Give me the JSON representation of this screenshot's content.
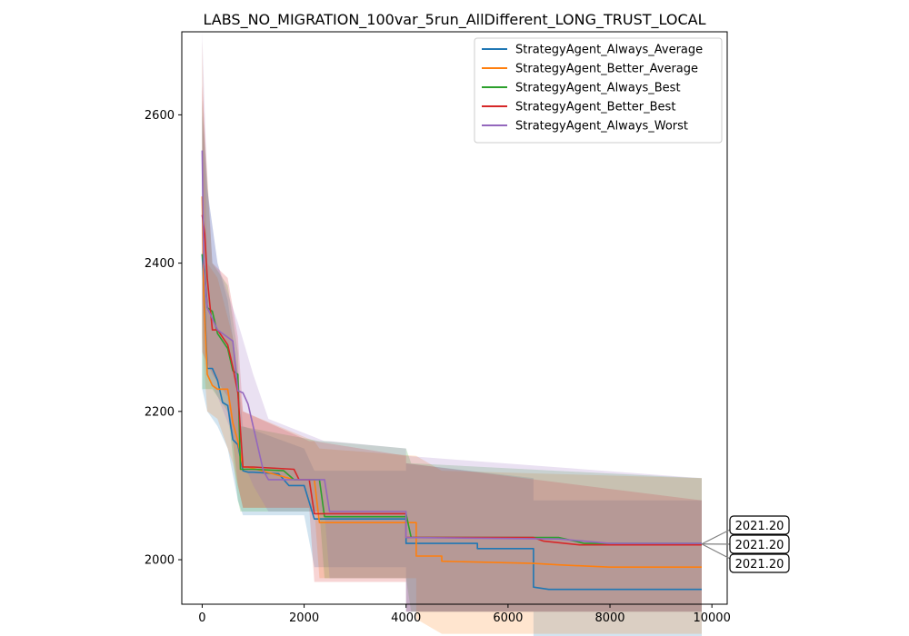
{
  "chart_data": {
    "type": "line",
    "title": "LABS_NO_MIGRATION_100var_5run_AllDifferent_LONG_TRUST_LOCAL",
    "xlabel": "",
    "ylabel": "",
    "xlim": [
      -400,
      10300
    ],
    "ylim": [
      1940,
      2712
    ],
    "xticks": [
      0,
      2000,
      4000,
      6000,
      8000,
      10000
    ],
    "yticks": [
      2000,
      2200,
      2400,
      2600
    ],
    "legend_position": "upper-right",
    "grid": false,
    "series": [
      {
        "name": "StrategyAgent_Always_Average",
        "color": "#1f77b4",
        "points": [
          [
            0,
            2412
          ],
          [
            50,
            2340
          ],
          [
            100,
            2258
          ],
          [
            200,
            2258
          ],
          [
            300,
            2242
          ],
          [
            400,
            2212
          ],
          [
            500,
            2208
          ],
          [
            600,
            2162
          ],
          [
            700,
            2155
          ],
          [
            800,
            2120
          ],
          [
            900,
            2118
          ],
          [
            1000,
            2118
          ],
          [
            1500,
            2116
          ],
          [
            1700,
            2100
          ],
          [
            2000,
            2100
          ],
          [
            2200,
            2055
          ],
          [
            4000,
            2055
          ],
          [
            4000,
            2022
          ],
          [
            5400,
            2022
          ],
          [
            5400,
            2015
          ],
          [
            6500,
            2015
          ],
          [
            6500,
            1963
          ],
          [
            6800,
            1960
          ],
          [
            9800,
            1960
          ]
        ],
        "band": [
          [
            0,
            2230,
            2600
          ],
          [
            100,
            2200,
            2500
          ],
          [
            300,
            2180,
            2400
          ],
          [
            500,
            2150,
            2350
          ],
          [
            700,
            2080,
            2250
          ],
          [
            800,
            2060,
            2180
          ],
          [
            2000,
            2060,
            2150
          ],
          [
            2200,
            1990,
            2120
          ],
          [
            4000,
            1990,
            2120
          ],
          [
            4000,
            1930,
            2130
          ],
          [
            6500,
            1930,
            2110
          ],
          [
            6500,
            1885,
            2080
          ],
          [
            9800,
            1885,
            2080
          ]
        ]
      },
      {
        "name": "StrategyAgent_Better_Average",
        "color": "#ff7f0e",
        "points": [
          [
            0,
            2490
          ],
          [
            30,
            2360
          ],
          [
            100,
            2250
          ],
          [
            200,
            2235
          ],
          [
            300,
            2230
          ],
          [
            500,
            2230
          ],
          [
            600,
            2185
          ],
          [
            700,
            2160
          ],
          [
            800,
            2125
          ],
          [
            900,
            2125
          ],
          [
            1800,
            2108
          ],
          [
            2200,
            2108
          ],
          [
            2300,
            2050
          ],
          [
            4200,
            2050
          ],
          [
            4200,
            2005
          ],
          [
            4700,
            2005
          ],
          [
            4700,
            1998
          ],
          [
            6500,
            1995
          ],
          [
            7000,
            1993
          ],
          [
            8000,
            1990
          ],
          [
            9800,
            1990
          ]
        ],
        "band": [
          [
            0,
            2300,
            2700
          ],
          [
            100,
            2200,
            2400
          ],
          [
            300,
            2190,
            2380
          ],
          [
            600,
            2130,
            2300
          ],
          [
            800,
            2070,
            2200
          ],
          [
            2200,
            2070,
            2160
          ],
          [
            2300,
            1975,
            2150
          ],
          [
            4200,
            1975,
            2140
          ],
          [
            4200,
            1920,
            2140
          ],
          [
            4700,
            1900,
            2120
          ],
          [
            9800,
            1900,
            2110
          ]
        ]
      },
      {
        "name": "StrategyAgent_Always_Best",
        "color": "#2ca02c",
        "points": [
          [
            0,
            2412
          ],
          [
            50,
            2390
          ],
          [
            100,
            2340
          ],
          [
            200,
            2335
          ],
          [
            300,
            2305
          ],
          [
            500,
            2285
          ],
          [
            600,
            2255
          ],
          [
            700,
            2250
          ],
          [
            750,
            2122
          ],
          [
            1000,
            2122
          ],
          [
            1600,
            2120
          ],
          [
            1800,
            2108
          ],
          [
            2300,
            2108
          ],
          [
            2400,
            2058
          ],
          [
            4000,
            2058
          ],
          [
            4000,
            2062
          ],
          [
            4100,
            2030
          ],
          [
            7000,
            2030
          ],
          [
            7500,
            2022
          ],
          [
            9800,
            2022
          ]
        ],
        "band": [
          [
            0,
            2230,
            2620
          ],
          [
            200,
            2230,
            2400
          ],
          [
            500,
            2200,
            2370
          ],
          [
            700,
            2080,
            2280
          ],
          [
            750,
            2065,
            2180
          ],
          [
            2300,
            2065,
            2160
          ],
          [
            2400,
            1975,
            2160
          ],
          [
            4000,
            1975,
            2150
          ],
          [
            4100,
            1930,
            2130
          ],
          [
            9800,
            1930,
            2110
          ]
        ]
      },
      {
        "name": "StrategyAgent_Better_Best",
        "color": "#d62728",
        "points": [
          [
            0,
            2465
          ],
          [
            50,
            2440
          ],
          [
            100,
            2380
          ],
          [
            200,
            2310
          ],
          [
            300,
            2310
          ],
          [
            500,
            2290
          ],
          [
            600,
            2260
          ],
          [
            700,
            2225
          ],
          [
            800,
            2125
          ],
          [
            1000,
            2125
          ],
          [
            1800,
            2122
          ],
          [
            1900,
            2108
          ],
          [
            2100,
            2108
          ],
          [
            2200,
            2062
          ],
          [
            4000,
            2062
          ],
          [
            4000,
            2030
          ],
          [
            6500,
            2030
          ],
          [
            6700,
            2025
          ],
          [
            7400,
            2020
          ],
          [
            9800,
            2020
          ]
        ],
        "band": [
          [
            0,
            2280,
            2640
          ],
          [
            200,
            2250,
            2400
          ],
          [
            500,
            2220,
            2380
          ],
          [
            700,
            2100,
            2300
          ],
          [
            800,
            2070,
            2200
          ],
          [
            2100,
            2070,
            2160
          ],
          [
            2200,
            1970,
            2160
          ],
          [
            4000,
            1970,
            2140
          ],
          [
            4000,
            1930,
            2130
          ],
          [
            9800,
            1930,
            2080
          ]
        ]
      },
      {
        "name": "StrategyAgent_Always_Worst",
        "color": "#9467bd",
        "points": [
          [
            0,
            2552
          ],
          [
            30,
            2400
          ],
          [
            100,
            2340
          ],
          [
            300,
            2310
          ],
          [
            400,
            2305
          ],
          [
            600,
            2295
          ],
          [
            700,
            2228
          ],
          [
            800,
            2225
          ],
          [
            900,
            2210
          ],
          [
            1000,
            2180
          ],
          [
            1200,
            2120
          ],
          [
            1300,
            2108
          ],
          [
            1900,
            2108
          ],
          [
            2400,
            2108
          ],
          [
            2500,
            2065
          ],
          [
            4000,
            2065
          ],
          [
            4000,
            2030
          ],
          [
            7000,
            2028
          ],
          [
            8000,
            2022
          ],
          [
            9800,
            2022
          ]
        ],
        "band": [
          [
            0,
            2350,
            2712
          ],
          [
            100,
            2250,
            2500
          ],
          [
            300,
            2220,
            2400
          ],
          [
            700,
            2150,
            2320
          ],
          [
            1000,
            2100,
            2250
          ],
          [
            1300,
            2065,
            2190
          ],
          [
            2400,
            2065,
            2160
          ],
          [
            2500,
            1975,
            2160
          ],
          [
            4000,
            1975,
            2150
          ],
          [
            4000,
            1930,
            2140
          ],
          [
            9800,
            1930,
            2110
          ]
        ]
      }
    ],
    "annotations": [
      {
        "label": "2021.20",
        "x": 9800,
        "y": 2021.2
      },
      {
        "label": "2021.20",
        "x": 9800,
        "y": 2021.2
      },
      {
        "label": "2021.20",
        "x": 9800,
        "y": 2021.2
      }
    ]
  }
}
